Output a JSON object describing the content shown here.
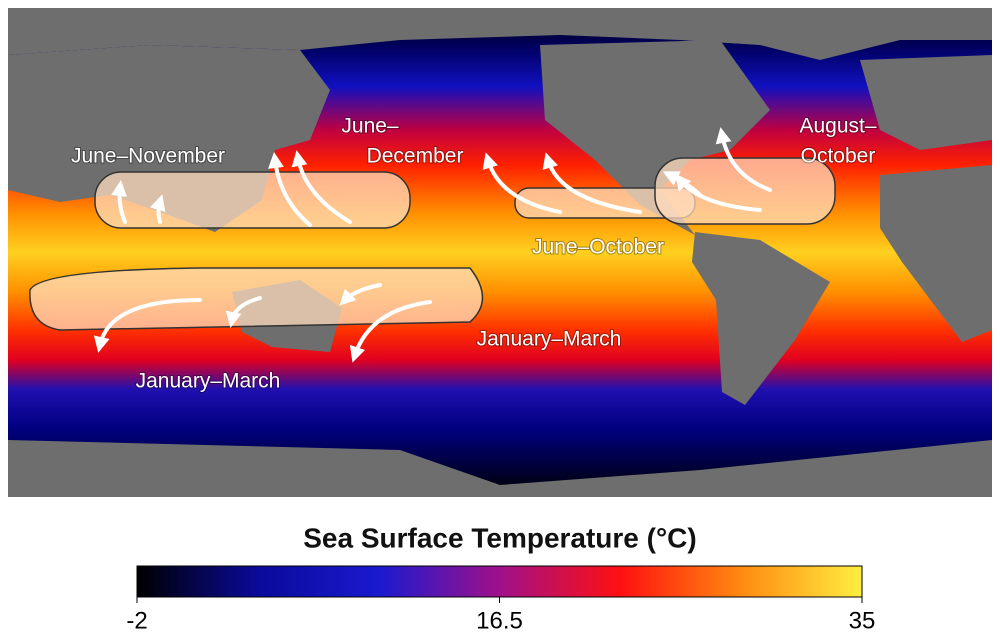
{
  "map": {
    "labels": [
      {
        "lines": [
          "June–November"
        ]
      },
      {
        "lines": [
          "June–",
          "December"
        ]
      },
      {
        "lines": [
          "August–",
          "October"
        ]
      },
      {
        "lines": [
          "June–October"
        ]
      },
      {
        "lines": [
          "January–March"
        ]
      },
      {
        "lines": [
          "January–March"
        ]
      }
    ]
  },
  "colorbar": {
    "title": "Sea Surface Temperature (°C)",
    "range": [
      -2,
      35
    ],
    "ticks": [
      -2,
      16.5,
      35
    ],
    "colors": [
      "#000000",
      "#0a0a9a",
      "#1a1ad0",
      "#a0108a",
      "#ff1010",
      "#ff8a10",
      "#ffee40"
    ]
  }
}
